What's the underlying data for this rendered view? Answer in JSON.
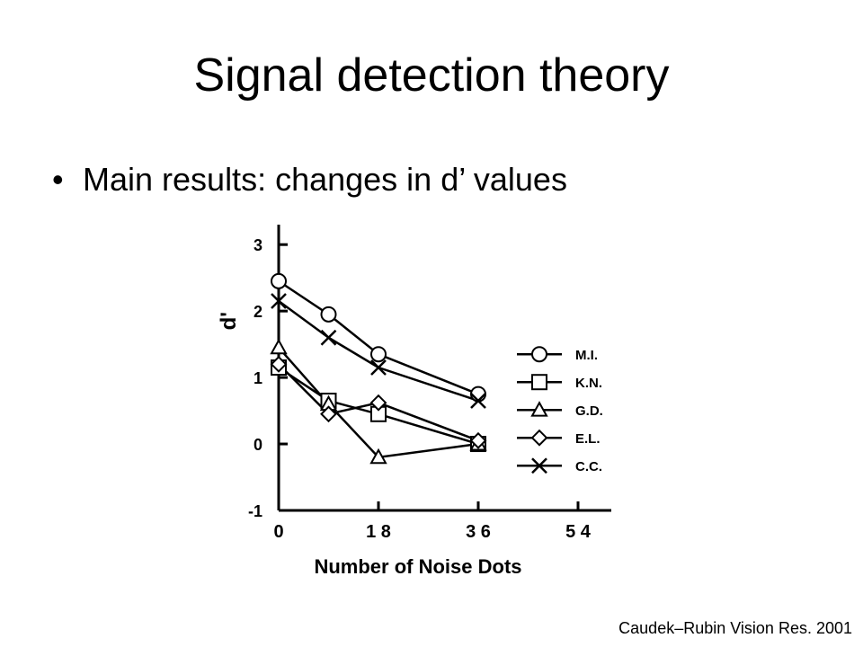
{
  "slide": {
    "title": "Signal detection theory",
    "bullet": "Main results: changes in d’ values",
    "citation": "Caudek–Rubin Vision Res. 2001"
  },
  "chart_data": {
    "type": "line",
    "xlabel": "Number of Noise Dots",
    "ylabel": "d'",
    "x": [
      0,
      9,
      18,
      36
    ],
    "xlim": [
      0,
      60
    ],
    "ylim": [
      -1,
      3.3
    ],
    "xticks": [
      0,
      18,
      36,
      54
    ],
    "xtick_labels": [
      "0",
      "1 8",
      "3 6",
      "5 4"
    ],
    "yticks": [
      -1,
      0,
      1,
      2,
      3
    ],
    "ytick_labels": [
      "-1",
      "0",
      "1",
      "2",
      "3"
    ],
    "legend_position": "right",
    "series": [
      {
        "name": "M.I.",
        "marker": "circle",
        "values": [
          2.45,
          1.95,
          1.35,
          0.75
        ]
      },
      {
        "name": "K.N.",
        "marker": "square",
        "values": [
          1.15,
          0.65,
          0.45,
          0.0
        ]
      },
      {
        "name": "G.D.",
        "marker": "triangle",
        "values": [
          1.45,
          0.6,
          -0.2,
          0.0
        ]
      },
      {
        "name": "E.L.",
        "marker": "diamond",
        "values": [
          1.2,
          0.45,
          0.62,
          0.05
        ]
      },
      {
        "name": "C.C.",
        "marker": "x",
        "values": [
          2.15,
          1.6,
          1.15,
          0.65
        ]
      }
    ]
  }
}
